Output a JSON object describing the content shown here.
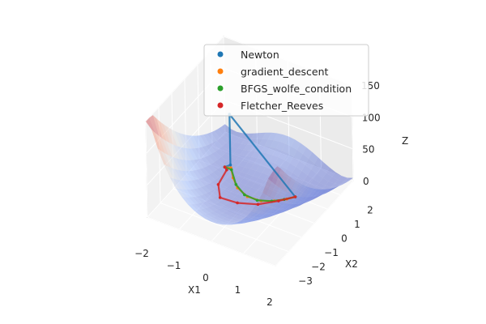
{
  "chart_data": {
    "type": "surface3d",
    "title": "",
    "xlabel": "X1",
    "ylabel": "X2",
    "zlabel": "Z",
    "xlim": [
      -2,
      2
    ],
    "ylim": [
      -3,
      3
    ],
    "zlim": [
      0,
      150
    ],
    "x_ticks": [
      "−2",
      "−1",
      "0",
      "1",
      "2"
    ],
    "y_ticks": [
      "−3",
      "−2",
      "−1",
      "0",
      "1",
      "2"
    ],
    "z_ticks": [
      "0",
      "50",
      "100",
      "150"
    ],
    "legend_position": "top-right",
    "surface_colormap": "coolwarm",
    "series": [
      {
        "name": "Newton",
        "color": "#1f77b4",
        "points": [
          [
            -1.2,
            1.0,
            4.8
          ],
          [
            -1.18,
            1.38,
            0.0
          ],
          [
            -0.9,
            0.7,
            100.0
          ],
          [
            1.0,
            1.0,
            0.0
          ]
        ]
      },
      {
        "name": "gradient_descent",
        "color": "#ff7f0e",
        "points": [
          [
            -1.2,
            1.0,
            4.8
          ],
          [
            -1.05,
            1.1,
            4.2
          ],
          [
            -0.8,
            0.65,
            3.3
          ],
          [
            -0.5,
            0.25,
            2.3
          ],
          [
            -0.1,
            0.02,
            1.2
          ],
          [
            0.3,
            0.09,
            0.5
          ],
          [
            0.6,
            0.36,
            0.16
          ],
          [
            0.85,
            0.72,
            0.02
          ],
          [
            1.0,
            1.0,
            0.0
          ]
        ]
      },
      {
        "name": "BFGS_wolfe_condition",
        "color": "#2ca02c",
        "points": [
          [
            -1.2,
            1.0,
            4.8
          ],
          [
            -1.0,
            1.02,
            4.0
          ],
          [
            -0.6,
            0.38,
            2.6
          ],
          [
            -0.2,
            0.05,
            1.5
          ],
          [
            0.2,
            0.04,
            0.7
          ],
          [
            0.55,
            0.3,
            0.2
          ],
          [
            0.8,
            0.64,
            0.04
          ],
          [
            1.0,
            1.0,
            0.0
          ]
        ]
      },
      {
        "name": "Fletcher_Reeves",
        "color": "#d62728",
        "points": [
          [
            -1.2,
            1.0,
            4.8
          ],
          [
            -1.1,
            0.9,
            4.5
          ],
          [
            -1.0,
            0.0,
            3.5
          ],
          [
            -0.7,
            -0.6,
            2.0
          ],
          [
            -0.2,
            -0.5,
            1.0
          ],
          [
            0.3,
            -0.15,
            0.4
          ],
          [
            0.7,
            0.45,
            0.1
          ],
          [
            1.0,
            1.0,
            0.0
          ]
        ]
      }
    ]
  }
}
